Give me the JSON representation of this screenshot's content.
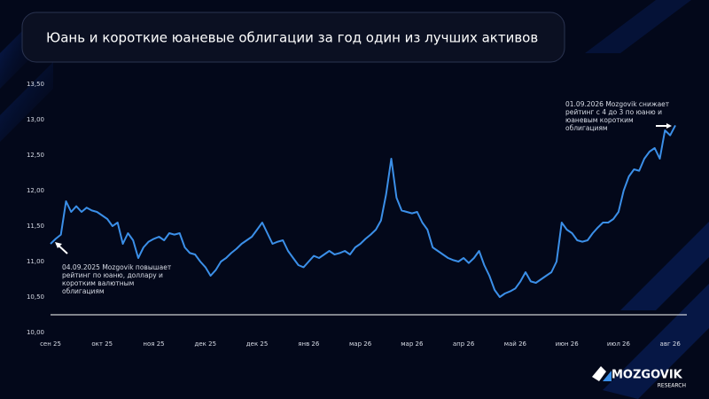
{
  "chart_data": {
    "type": "line",
    "title": "Юань и короткие юаневые облигации за год один из лучших активов",
    "categories": [
      "сен 25",
      null,
      null,
      null,
      null,
      null,
      null,
      null,
      null,
      null,
      "окт 25",
      null,
      null,
      null,
      null,
      null,
      null,
      null,
      null,
      null,
      "ноя 25",
      null,
      null,
      null,
      null,
      null,
      null,
      null,
      null,
      null,
      "дек 25",
      null,
      null,
      null,
      null,
      null,
      null,
      null,
      null,
      null,
      "дек 25",
      null,
      null,
      null,
      null,
      null,
      null,
      null,
      null,
      null,
      "янв 26",
      null,
      null,
      null,
      null,
      null,
      null,
      null,
      null,
      null,
      "мар 26",
      null,
      null,
      null,
      null,
      null,
      null,
      null,
      null,
      null,
      "мар 26",
      null,
      null,
      null,
      null,
      null,
      null,
      null,
      null,
      null,
      "апр 26",
      null,
      null,
      null,
      null,
      null,
      null,
      null,
      null,
      null,
      "май 26",
      null,
      null,
      null,
      null,
      null,
      null,
      null,
      null,
      null,
      "июн 26",
      null,
      null,
      null,
      null,
      null,
      null,
      null,
      null,
      null,
      "июл 26",
      null,
      null,
      null,
      null,
      null,
      null,
      null,
      null,
      null,
      "авг 26",
      null
    ],
    "series": [
      {
        "color": "#3b8fe8",
        "values": [
          11.25,
          11.32,
          11.38,
          11.85,
          11.7,
          11.78,
          11.7,
          11.76,
          11.72,
          11.7,
          11.65,
          11.6,
          11.5,
          11.55,
          11.25,
          11.4,
          11.3,
          11.05,
          11.2,
          11.28,
          11.32,
          11.35,
          11.3,
          11.4,
          11.38,
          11.4,
          11.2,
          11.12,
          11.1,
          11.0,
          10.92,
          10.8,
          10.88,
          11.0,
          11.05,
          11.12,
          11.18,
          11.25,
          11.3,
          11.35,
          11.45,
          11.55,
          11.4,
          11.25,
          11.28,
          11.3,
          11.15,
          11.05,
          10.95,
          10.92,
          11.0,
          11.08,
          11.05,
          11.1,
          11.15,
          11.1,
          11.12,
          11.15,
          11.1,
          11.2,
          11.25,
          11.32,
          11.38,
          11.45,
          11.58,
          11.95,
          12.45,
          11.9,
          11.72,
          11.7,
          11.68,
          11.7,
          11.55,
          11.45,
          11.2,
          11.15,
          11.1,
          11.05,
          11.02,
          11.0,
          11.05,
          10.98,
          11.05,
          11.15,
          10.95,
          10.8,
          10.6,
          10.5,
          10.55,
          10.58,
          10.62,
          10.72,
          10.85,
          10.72,
          10.7,
          10.75,
          10.8,
          10.85,
          11.0,
          11.55,
          11.45,
          11.4,
          11.3,
          11.28,
          11.3,
          11.4,
          11.48,
          11.55,
          11.55,
          11.6,
          11.7,
          12.0,
          12.2,
          12.3,
          12.28,
          12.45,
          12.55,
          12.6,
          12.45,
          12.85,
          12.78,
          12.92
        ]
      }
    ],
    "ylim": [
      10,
      13.5
    ],
    "yticks": [
      {
        "value": 10,
        "label": "10,00"
      },
      {
        "value": 10.5,
        "label": "10,50"
      },
      {
        "value": 11,
        "label": "11,00"
      },
      {
        "value": 11.5,
        "label": "11,50"
      },
      {
        "value": 12,
        "label": "12,00"
      },
      {
        "value": 12.5,
        "label": "12,50"
      },
      {
        "value": 13,
        "label": "13,00"
      },
      {
        "value": 13.5,
        "label": "13,50"
      }
    ],
    "annotations": [
      {
        "lines": [
          "04.09.2025 Mozgovik повышает",
          "рейтинг по юаню, доллару и",
          "коротким валютным",
          "облигациям"
        ]
      },
      {
        "lines": [
          "01.09.2026 Mozgovik снижает",
          "рейтинг с 4 до 3 по юаню и",
          "юаневым коротким",
          "облигациям"
        ]
      }
    ],
    "logo": {
      "name": "MOZGOVIK",
      "sub": "RESEARCH"
    }
  }
}
